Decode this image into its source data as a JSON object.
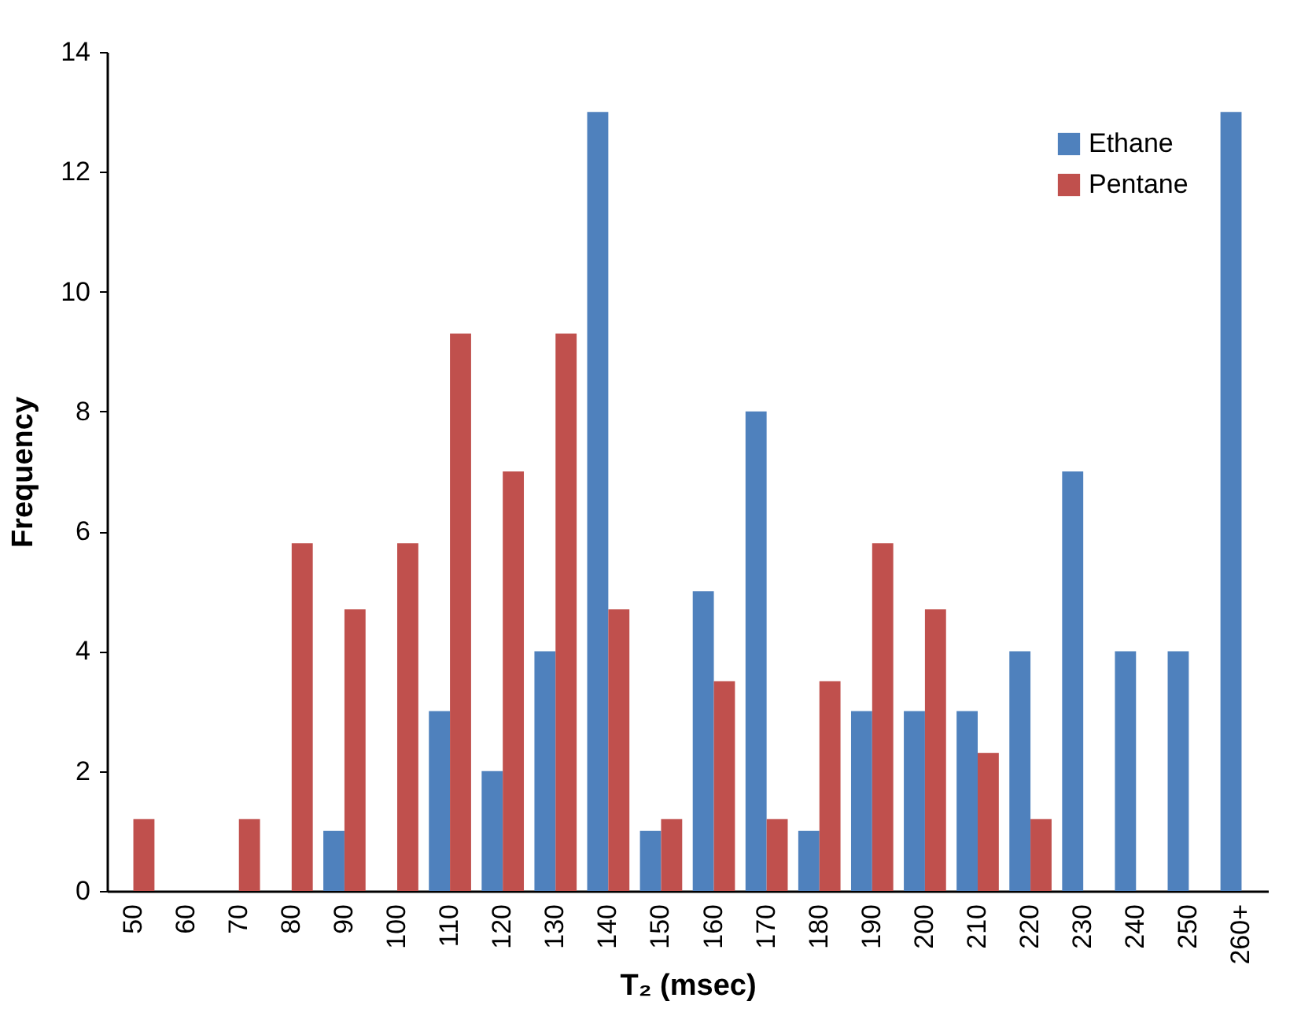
{
  "chart_data": {
    "type": "bar",
    "xlabel": "T₂ (msec)",
    "ylabel": "Frequency",
    "categories": [
      "50",
      "60",
      "70",
      "80",
      "90",
      "100",
      "110",
      "120",
      "130",
      "140",
      "150",
      "160",
      "170",
      "180",
      "190",
      "200",
      "210",
      "220",
      "230",
      "240",
      "250",
      "260+"
    ],
    "series": [
      {
        "name": "Ethane",
        "color": "#4f81bd",
        "values": [
          0,
          0,
          0,
          0,
          1,
          0,
          3,
          2,
          4,
          13,
          1,
          5,
          8,
          1,
          3,
          3,
          3,
          4,
          7,
          4,
          4,
          13
        ]
      },
      {
        "name": "Pentane",
        "color": "#c0504d",
        "values": [
          1.2,
          0,
          1.2,
          5.8,
          4.7,
          5.8,
          9.3,
          7.0,
          9.3,
          4.7,
          1.2,
          3.5,
          1.2,
          3.5,
          5.8,
          4.7,
          2.3,
          1.2,
          0,
          0,
          0,
          0
        ]
      }
    ],
    "ylim": [
      0,
      14
    ],
    "yticks": [
      0,
      2,
      4,
      6,
      8,
      10,
      12,
      14
    ],
    "grid": false,
    "legend": "top right"
  }
}
